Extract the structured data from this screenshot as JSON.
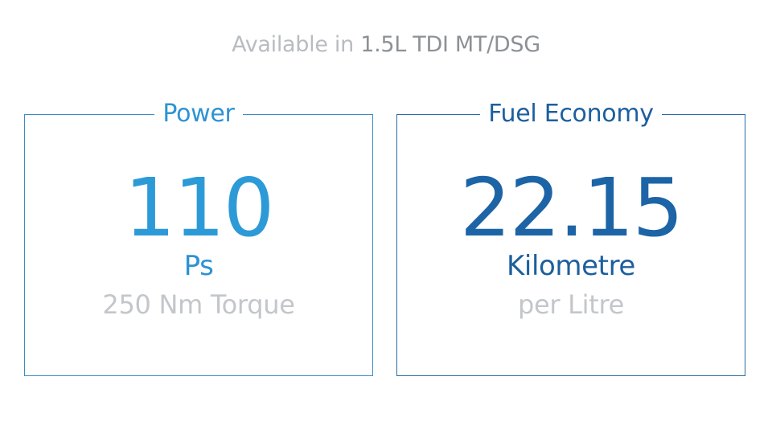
{
  "headline": {
    "prefix": "Available in ",
    "engine": "1.5L TDI MT/DSG"
  },
  "cards": {
    "power": {
      "title": "Power",
      "value": "110",
      "unit": "Ps",
      "sub": "250 Nm Torque"
    },
    "fuel": {
      "title": "Fuel Economy",
      "value": "22.15",
      "unit": "Kilometre",
      "sub": "per Litre"
    }
  },
  "colors": {
    "power_accent": "#2d93d3",
    "fuel_accent": "#1c5f9e",
    "muted_text": "#b8bcc1"
  }
}
